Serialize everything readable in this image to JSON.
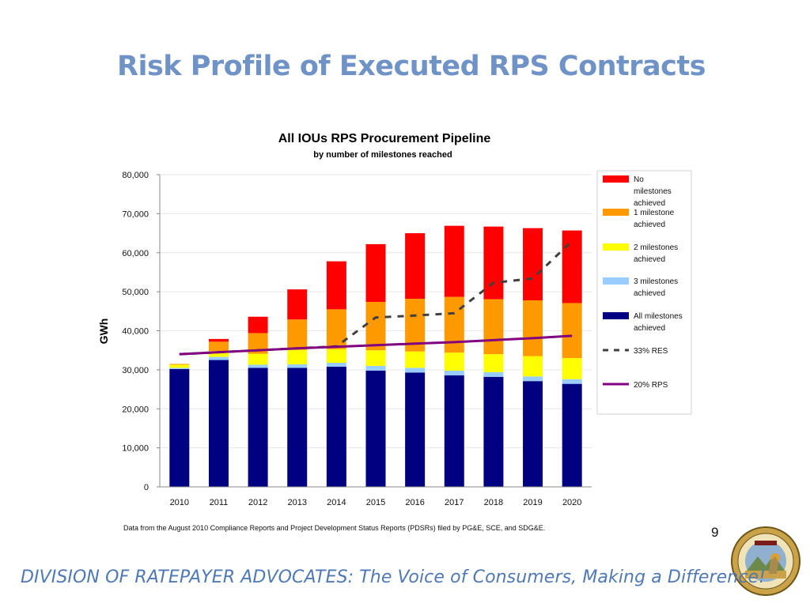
{
  "slide": {
    "title": "Risk Profile of Executed RPS Contracts",
    "source_note": "Data from the August 2010 Compliance Reports and Project Development Status Reports (PDSRs) filed by PG&E, SCE, and SDG&E.",
    "page_number": "9",
    "footer": "DIVISION OF RATEPAYER ADVOCATES: The Voice of Consumers, Making a Difference!",
    "seal_text": "PUBLIC UTILITIES COMMISSION · STATE OF CALIFORNIA · EUREKA"
  },
  "colors": {
    "title": "#6f93c7",
    "footer": "#4f79b5",
    "no_milestones": "#ff0000",
    "one_milestone": "#ff9900",
    "two_milestones": "#ffff00",
    "three_milestones": "#99ccff",
    "all_milestones": "#000080",
    "res_line": "#404040",
    "rps_line": "#800080"
  },
  "chart_data": {
    "type": "bar",
    "stacked": true,
    "title": "All IOUs RPS Procurement Pipeline",
    "subtitle": "by number of milestones reached",
    "xlabel": "",
    "ylabel": "GWh",
    "ylim": [
      0,
      80000
    ],
    "y_ticks": [
      "0",
      "10,000",
      "20,000",
      "30,000",
      "40,000",
      "50,000",
      "60,000",
      "70,000",
      "80,000"
    ],
    "categories": [
      "2010",
      "2011",
      "2012",
      "2013",
      "2014",
      "2015",
      "2016",
      "2017",
      "2018",
      "2019",
      "2020"
    ],
    "series": [
      {
        "name": "All milestones achieved",
        "color": "#000080",
        "values": [
          30200,
          32500,
          30500,
          30500,
          30800,
          29800,
          29300,
          28600,
          28200,
          27100,
          26400
        ]
      },
      {
        "name": "3 milestones achieved",
        "color": "#99ccff",
        "values": [
          300,
          800,
          800,
          900,
          1000,
          1200,
          1200,
          1200,
          1200,
          1200,
          1200
        ]
      },
      {
        "name": "2 milestones achieved",
        "color": "#ffff00",
        "values": [
          800,
          1500,
          2800,
          3700,
          3500,
          4000,
          4200,
          4600,
          4600,
          5200,
          5400
        ]
      },
      {
        "name": "1 milestone achieved",
        "color": "#ff9900",
        "values": [
          200,
          2400,
          5300,
          7800,
          10200,
          12400,
          13500,
          14300,
          14100,
          14300,
          14100
        ]
      },
      {
        "name": "No milestones achieved",
        "color": "#ff0000",
        "values": [
          0,
          700,
          4200,
          7700,
          12300,
          14800,
          16800,
          18200,
          18600,
          18500,
          18600
        ]
      }
    ],
    "lines": [
      {
        "name": "33% RES",
        "color": "#404040",
        "dashed": true,
        "values": [
          34000,
          34500,
          35000,
          35500,
          36000,
          43400,
          43900,
          44500,
          52300,
          53400,
          63000
        ]
      },
      {
        "name": "20% RPS",
        "color": "#800080",
        "dashed": false,
        "values": [
          34000,
          34500,
          35000,
          35500,
          35900,
          36300,
          36700,
          37100,
          37600,
          38100,
          38700
        ]
      }
    ],
    "grid": true,
    "legend_position": "right"
  }
}
